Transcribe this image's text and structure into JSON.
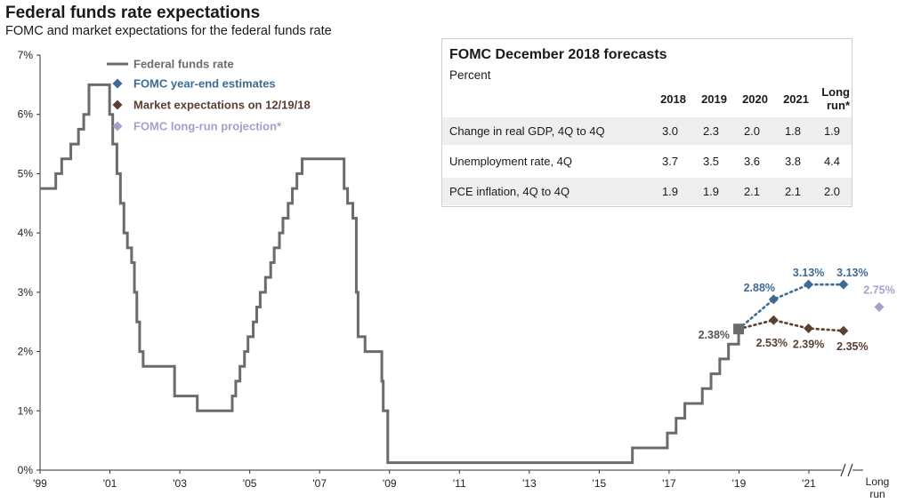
{
  "title": "Federal funds rate expectations",
  "subtitle": "FOMC and market expectations for the federal funds rate",
  "colors": {
    "funds_rate": "#6b6b6b",
    "fomc": "#3d6b93",
    "market": "#5a4032",
    "longrun": "#a69fca"
  },
  "legend": [
    {
      "label": "Federal funds rate",
      "marker": "line",
      "color": "#6b6b6b"
    },
    {
      "label": "FOMC year-end estimates",
      "marker": "diamond",
      "color": "#3d6b93"
    },
    {
      "label": "Market expectations on 12/19/18",
      "marker": "diamond",
      "color": "#5a4032"
    },
    {
      "label": "FOMC long-run projection*",
      "marker": "diamond",
      "color": "#a69fca"
    }
  ],
  "forecast_table": {
    "title": "FOMC December 2018 forecasts",
    "unit": "Percent",
    "headers": [
      "2018",
      "2019",
      "2020",
      "2021",
      "Long run*"
    ],
    "rows": [
      {
        "label": "Change in real GDP, 4Q to 4Q",
        "values": [
          "3.0",
          "2.3",
          "2.0",
          "1.8",
          "1.9"
        ]
      },
      {
        "label": "Unemployment rate, 4Q",
        "values": [
          "3.7",
          "3.5",
          "3.6",
          "3.8",
          "4.4"
        ]
      },
      {
        "label": "PCE inflation, 4Q to 4Q",
        "values": [
          "1.9",
          "1.9",
          "2.1",
          "2.1",
          "2.0"
        ]
      }
    ]
  },
  "chart_data": {
    "type": "line",
    "title": "Federal funds rate expectations",
    "subtitle": "FOMC and market expectations for the federal funds rate",
    "xlim": [
      1999,
      2022
    ],
    "ylim": [
      0,
      7
    ],
    "y_unit": "%",
    "y_ticks": [
      0,
      1,
      2,
      3,
      4,
      5,
      6,
      7
    ],
    "y_tick_labels": [
      "0%",
      "1%",
      "2%",
      "3%",
      "4%",
      "5%",
      "6%",
      "7%"
    ],
    "x_ticks": [
      1999,
      2001,
      2003,
      2005,
      2007,
      2009,
      2011,
      2013,
      2015,
      2017,
      2019,
      2021
    ],
    "x_tick_labels": [
      "'99",
      "'01",
      "'03",
      "'05",
      "'07",
      "'09",
      "'11",
      "'13",
      "'15",
      "'17",
      "'19",
      "'21"
    ],
    "long_run_label": "Long run",
    "grid": false,
    "series": [
      {
        "name": "Federal funds rate",
        "style": "step-line",
        "points": [
          [
            1999.0,
            4.75
          ],
          [
            1999.45,
            5.0
          ],
          [
            1999.62,
            5.25
          ],
          [
            1999.88,
            5.5
          ],
          [
            2000.1,
            5.75
          ],
          [
            2000.25,
            6.0
          ],
          [
            2000.4,
            6.5
          ],
          [
            2000.99,
            6.0
          ],
          [
            2001.08,
            5.5
          ],
          [
            2001.2,
            5.0
          ],
          [
            2001.3,
            4.5
          ],
          [
            2001.4,
            4.0
          ],
          [
            2001.5,
            3.75
          ],
          [
            2001.62,
            3.5
          ],
          [
            2001.7,
            3.0
          ],
          [
            2001.77,
            2.5
          ],
          [
            2001.85,
            2.0
          ],
          [
            2001.95,
            1.75
          ],
          [
            2002.85,
            1.25
          ],
          [
            2003.5,
            1.0
          ],
          [
            2004.5,
            1.25
          ],
          [
            2004.6,
            1.5
          ],
          [
            2004.72,
            1.75
          ],
          [
            2004.85,
            2.0
          ],
          [
            2004.95,
            2.25
          ],
          [
            2005.1,
            2.5
          ],
          [
            2005.2,
            2.75
          ],
          [
            2005.3,
            3.0
          ],
          [
            2005.45,
            3.25
          ],
          [
            2005.6,
            3.5
          ],
          [
            2005.7,
            3.75
          ],
          [
            2005.85,
            4.0
          ],
          [
            2005.95,
            4.25
          ],
          [
            2006.1,
            4.5
          ],
          [
            2006.22,
            4.75
          ],
          [
            2006.35,
            5.0
          ],
          [
            2006.5,
            5.25
          ],
          [
            2007.7,
            4.75
          ],
          [
            2007.8,
            4.5
          ],
          [
            2007.95,
            4.25
          ],
          [
            2008.05,
            3.0
          ],
          [
            2008.1,
            2.25
          ],
          [
            2008.3,
            2.0
          ],
          [
            2008.78,
            1.5
          ],
          [
            2008.82,
            1.0
          ],
          [
            2008.95,
            0.125
          ],
          [
            2015.95,
            0.375
          ],
          [
            2016.95,
            0.625
          ],
          [
            2017.2,
            0.875
          ],
          [
            2017.45,
            1.125
          ],
          [
            2017.95,
            1.375
          ],
          [
            2018.2,
            1.625
          ],
          [
            2018.45,
            1.875
          ],
          [
            2018.7,
            2.125
          ],
          [
            2018.99,
            2.375
          ]
        ]
      },
      {
        "name": "FOMC year-end estimates",
        "style": "dotted-diamond",
        "points": [
          [
            2018.99,
            2.38
          ],
          [
            2019.99,
            2.88
          ],
          [
            2020.99,
            3.13
          ],
          [
            2021.99,
            3.13
          ]
        ],
        "labels": [
          "",
          "2.88%",
          "3.13%",
          "3.13%"
        ]
      },
      {
        "name": "Market expectations on 12/19/18",
        "style": "dotted-diamond",
        "points": [
          [
            2018.99,
            2.38
          ],
          [
            2019.99,
            2.53
          ],
          [
            2020.99,
            2.39
          ],
          [
            2021.99,
            2.35
          ]
        ],
        "labels": [
          "",
          "2.53%",
          "2.39%",
          "2.35%"
        ]
      },
      {
        "name": "FOMC long-run projection*",
        "style": "diamond",
        "points": [
          [
            "Long run",
            2.75
          ]
        ],
        "labels": [
          "2.75%"
        ]
      }
    ],
    "annotations": [
      {
        "text": "2.38%",
        "x": 2018.99,
        "y": 2.38,
        "marker": "square"
      }
    ]
  }
}
